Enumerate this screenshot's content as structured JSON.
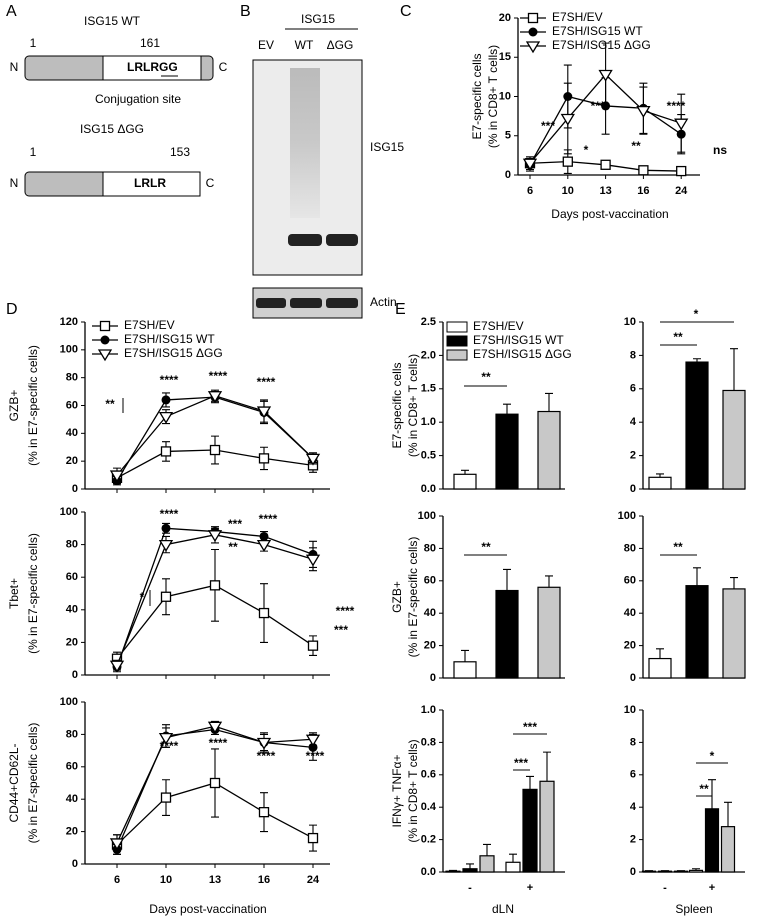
{
  "panel_labels": [
    "A",
    "B",
    "C",
    "D",
    "E"
  ],
  "diagram": {
    "wt": {
      "title": "ISG15 WT",
      "start": "1",
      "end": "161",
      "n": "N",
      "c": "C",
      "motif": "LRLRGG",
      "note": "Conjugation site"
    },
    "dgg": {
      "title": "ISG15 ΔGG",
      "start": "1",
      "end": "153",
      "n": "N",
      "c": "C",
      "motif": "LRLR"
    }
  },
  "blot": {
    "title": "ISG15",
    "lanes": [
      "EV",
      "WT",
      "ΔGG"
    ],
    "labels": [
      "ISG15",
      "Actin"
    ]
  },
  "chart_data": [
    {
      "type": "line",
      "ylabel": [
        "E7-specific cells",
        "(% in CD8+ T cells)"
      ],
      "xlabel": "Days post-vaccination",
      "categories": [
        "6",
        "10",
        "13",
        "16",
        "24"
      ],
      "ylim": [
        0,
        20
      ],
      "yticks": [
        0,
        5,
        10,
        15,
        20
      ],
      "legend": "upper left",
      "series": [
        {
          "name": "E7SH/EV",
          "marker": "square",
          "color": "#000000",
          "values": [
            1.5,
            1.7,
            1.3,
            0.6,
            0.5
          ],
          "errors": [
            0.8,
            1.5,
            0.5,
            0.3,
            0.3
          ]
        },
        {
          "name": "E7SH/ISG15 WT",
          "marker": "circle",
          "color": "#000000",
          "values": [
            1.3,
            10,
            8.8,
            8.5,
            5.2
          ],
          "errors": [
            0.8,
            4,
            3.6,
            3.2,
            2.5
          ]
        },
        {
          "name": "E7SH/ISG15 ΔGG",
          "marker": "triangle-down",
          "color": "#000000",
          "values": [
            1.5,
            7.2,
            12.8,
            8.2,
            6.6
          ],
          "errors": [
            0.8,
            4.5,
            4,
            3,
            3.7
          ]
        }
      ],
      "annotations": [
        "***",
        "*",
        "****",
        "**",
        "****",
        "ns"
      ]
    },
    {
      "type": "line",
      "ylabel": [
        "GZB+",
        "(% in E7-specific cells)"
      ],
      "categories": [
        null,
        null,
        null,
        null,
        null
      ],
      "ylim": [
        0,
        120
      ],
      "yticks": [
        0,
        20,
        40,
        60,
        80,
        100,
        120
      ],
      "legend": "upper left",
      "series": [
        {
          "name": "E7SH/EV",
          "marker": "square",
          "color": "#000000",
          "values": [
            8,
            27,
            28,
            22,
            17
          ],
          "errors": [
            4,
            7,
            10,
            8,
            5
          ]
        },
        {
          "name": "E7SH/ISG15 WT",
          "marker": "circle",
          "color": "#000000",
          "values": [
            6,
            64,
            66,
            55,
            22
          ],
          "errors": [
            3,
            5,
            4,
            8,
            3
          ]
        },
        {
          "name": "E7SH/ISG15 ΔGG",
          "marker": "triangle-down",
          "color": "#000000",
          "values": [
            10,
            52,
            67,
            56,
            22
          ],
          "errors": [
            5,
            5,
            4,
            8,
            4
          ]
        }
      ],
      "annotations": [
        "**",
        "****",
        "****",
        "****"
      ]
    },
    {
      "type": "line",
      "ylabel": [
        "Tbet+",
        "(% in E7-specific cells)"
      ],
      "categories": [
        null,
        null,
        null,
        null,
        null
      ],
      "ylim": [
        0,
        100
      ],
      "yticks": [
        0,
        20,
        40,
        60,
        80,
        100
      ],
      "series": [
        {
          "marker": "square",
          "color": "#000000",
          "values": [
            10,
            48,
            55,
            38,
            18
          ],
          "errors": [
            4,
            11,
            22,
            18,
            6
          ]
        },
        {
          "marker": "circle",
          "color": "#000000",
          "values": [
            5,
            90,
            88,
            85,
            74
          ],
          "errors": [
            3,
            3,
            2,
            3,
            8
          ]
        },
        {
          "marker": "triangle-down",
          "color": "#000000",
          "values": [
            6,
            80,
            86,
            80,
            71
          ],
          "errors": [
            3,
            5,
            5,
            4,
            7
          ]
        }
      ],
      "annotations": [
        "*",
        "****",
        "***",
        "**",
        "****",
        "****",
        "***"
      ]
    },
    {
      "type": "line",
      "ylabel": [
        "CD44+CD62L-",
        "(% in E7-specific cells)"
      ],
      "xlabel": "Days post-vaccination",
      "categories": [
        "6",
        "10",
        "13",
        "16",
        "24"
      ],
      "ylim": [
        0,
        100
      ],
      "yticks": [
        0,
        20,
        40,
        60,
        80,
        100
      ],
      "series": [
        {
          "marker": "square",
          "color": "#000000",
          "values": [
            12,
            41,
            50,
            32,
            16
          ],
          "errors": [
            6,
            11,
            21,
            12,
            8
          ]
        },
        {
          "marker": "circle",
          "color": "#000000",
          "values": [
            9,
            79,
            83,
            75,
            72
          ],
          "errors": [
            3,
            7,
            3,
            6,
            8
          ]
        },
        {
          "marker": "triangle-down",
          "color": "#000000",
          "values": [
            13,
            78,
            85,
            75,
            77
          ],
          "errors": [
            5,
            6,
            3,
            5,
            4
          ]
        }
      ],
      "annotations": [
        "****",
        "****",
        "****",
        "****"
      ]
    },
    {
      "type": "bar",
      "ylabel": [
        "E7-specific cells",
        "(% in CD8+ T cells)"
      ],
      "categories": [
        null
      ],
      "ylim": [
        0,
        2.5
      ],
      "yticks": [
        {
          "value": 0,
          "label": "0.0"
        },
        0.5,
        {
          "value": 1,
          "label": "1.0"
        },
        1.5,
        {
          "value": 2,
          "label": "2.0"
        },
        2.5
      ],
      "legend": "upper left",
      "series": [
        {
          "name": "E7SH/EV",
          "color": "#ffffff",
          "values": [
            0.22
          ],
          "errors": [
            0.06
          ]
        },
        {
          "name": "E7SH/ISG15 WT",
          "color": "#000000",
          "values": [
            1.12
          ],
          "errors": [
            0.15
          ]
        },
        {
          "name": "E7SH/ISG15 ΔGG",
          "color": "#c8c8c8",
          "values": [
            1.16
          ],
          "errors": [
            0.27
          ]
        }
      ],
      "annotations": [
        "**"
      ]
    },
    {
      "type": "bar",
      "categories": [
        null
      ],
      "ylim": [
        0,
        10
      ],
      "yticks": [
        0,
        2,
        4,
        6,
        8,
        10
      ],
      "series": [
        {
          "color": "#ffffff",
          "values": [
            0.7
          ],
          "errors": [
            0.2
          ]
        },
        {
          "color": "#000000",
          "values": [
            7.6
          ],
          "errors": [
            0.2
          ]
        },
        {
          "color": "#c8c8c8",
          "values": [
            5.9
          ],
          "errors": [
            2.5
          ]
        }
      ],
      "annotations": [
        "*",
        "**"
      ]
    },
    {
      "type": "bar",
      "ylabel": [
        "GZB+",
        "(% in E7-specific cells)"
      ],
      "categories": [
        null
      ],
      "ylim": [
        0,
        100
      ],
      "yticks": [
        0,
        20,
        40,
        60,
        80,
        100
      ],
      "series": [
        {
          "color": "#ffffff",
          "values": [
            10
          ],
          "errors": [
            7
          ]
        },
        {
          "color": "#000000",
          "values": [
            54
          ],
          "errors": [
            13
          ]
        },
        {
          "color": "#c8c8c8",
          "values": [
            56
          ],
          "errors": [
            7
          ]
        }
      ],
      "annotations": [
        "**"
      ]
    },
    {
      "type": "bar",
      "categories": [
        null
      ],
      "ylim": [
        0,
        100
      ],
      "yticks": [
        0,
        20,
        40,
        60,
        80,
        100
      ],
      "series": [
        {
          "color": "#ffffff",
          "values": [
            12
          ],
          "errors": [
            6
          ]
        },
        {
          "color": "#000000",
          "values": [
            57
          ],
          "errors": [
            11
          ]
        },
        {
          "color": "#c8c8c8",
          "values": [
            55
          ],
          "errors": [
            7
          ]
        }
      ],
      "annotations": [
        "**"
      ]
    },
    {
      "type": "bar",
      "ylabel": [
        "IFNγ+ TNFα+",
        "(% in CD8+ T cells)"
      ],
      "xlabel": "dLN",
      "categories": [
        "-",
        "+"
      ],
      "ylim": [
        0,
        1
      ],
      "yticks": [
        {
          "value": 0,
          "label": "0.0"
        },
        0.2,
        0.4,
        0.6,
        0.8,
        {
          "value": 1,
          "label": "1.0"
        }
      ],
      "series": [
        {
          "color": "#ffffff",
          "values": [
            0.005,
            0.06
          ],
          "errors": [
            0.005,
            0.05
          ]
        },
        {
          "color": "#000000",
          "values": [
            0.02,
            0.51
          ],
          "errors": [
            0.03,
            0.08
          ]
        },
        {
          "color": "#c8c8c8",
          "values": [
            0.1,
            0.56
          ],
          "errors": [
            0.07,
            0.18
          ]
        }
      ],
      "annotations": [
        "***",
        "***"
      ]
    },
    {
      "type": "bar",
      "xlabel": "Spleen",
      "categories": [
        "-",
        "+"
      ],
      "ylim": [
        0,
        10
      ],
      "yticks": [
        0,
        2,
        4,
        6,
        8,
        10
      ],
      "series": [
        {
          "color": "#ffffff",
          "values": [
            0.05,
            0.1
          ],
          "errors": [
            0.03,
            0.1
          ]
        },
        {
          "color": "#000000",
          "values": [
            0.05,
            3.9
          ],
          "errors": [
            0.03,
            1.8
          ]
        },
        {
          "color": "#c8c8c8",
          "values": [
            0.05,
            2.8
          ],
          "errors": [
            0.03,
            1.5
          ]
        }
      ],
      "annotations": [
        "*",
        "**"
      ]
    }
  ]
}
